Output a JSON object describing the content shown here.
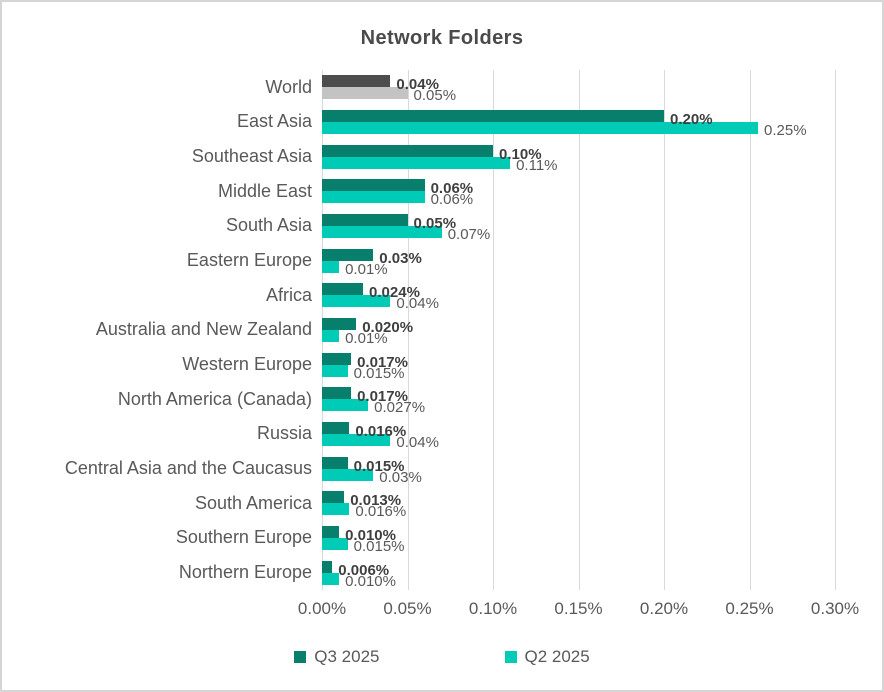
{
  "chart_data": {
    "type": "bar",
    "orientation": "horizontal",
    "title": "Network Folders",
    "xlabel": "",
    "ylabel": "",
    "xlim_percent": [
      0,
      0.3
    ],
    "x_ticks": [
      "0.00%",
      "0.05%",
      "0.10%",
      "0.15%",
      "0.20%",
      "0.25%",
      "0.30%"
    ],
    "grid": "vertical",
    "legend_position": "bottom",
    "series": [
      {
        "name": "Q3 2025",
        "color": "#087e6c"
      },
      {
        "name": "Q2 2025",
        "color": "#00cbb7"
      }
    ],
    "world_colors": {
      "q3": "#4d4d4d",
      "q2": "#c3c3c3"
    },
    "rows": [
      {
        "category": "World",
        "q3_value": 0.04,
        "q3_label": "0.04%",
        "q2_value": 0.05,
        "q2_label": "0.05%",
        "q3_color": "#4d4d4d",
        "q2_color": "#c3c3c3"
      },
      {
        "category": "East Asia",
        "q3_value": 0.2,
        "q3_label": "0.20%",
        "q2_value": 0.255,
        "q2_label": "0.25%"
      },
      {
        "category": "Southeast Asia",
        "q3_value": 0.1,
        "q3_label": "0.10%",
        "q2_value": 0.11,
        "q2_label": "0.11%"
      },
      {
        "category": "Middle East",
        "q3_value": 0.06,
        "q3_label": "0.06%",
        "q2_value": 0.06,
        "q2_label": "0.06%"
      },
      {
        "category": "South Asia",
        "q3_value": 0.05,
        "q3_label": "0.05%",
        "q2_value": 0.07,
        "q2_label": "0.07%"
      },
      {
        "category": "Eastern Europe",
        "q3_value": 0.03,
        "q3_label": "0.03%",
        "q2_value": 0.01,
        "q2_label": "0.01%"
      },
      {
        "category": "Africa",
        "q3_value": 0.024,
        "q3_label": "0.024%",
        "q2_value": 0.04,
        "q2_label": "0.04%"
      },
      {
        "category": "Australia and New Zealand",
        "q3_value": 0.02,
        "q3_label": "0.020%",
        "q2_value": 0.01,
        "q2_label": "0.01%"
      },
      {
        "category": "Western Europe",
        "q3_value": 0.017,
        "q3_label": "0.017%",
        "q2_value": 0.015,
        "q2_label": "0.015%"
      },
      {
        "category": "North America (Canada)",
        "q3_value": 0.017,
        "q3_label": "0.017%",
        "q2_value": 0.027,
        "q2_label": "0.027%"
      },
      {
        "category": "Russia",
        "q3_value": 0.016,
        "q3_label": "0.016%",
        "q2_value": 0.04,
        "q2_label": "0.04%"
      },
      {
        "category": "Central Asia and the Caucasus",
        "q3_value": 0.015,
        "q3_label": "0.015%",
        "q2_value": 0.03,
        "q2_label": "0.03%"
      },
      {
        "category": "South America",
        "q3_value": 0.013,
        "q3_label": "0.013%",
        "q2_value": 0.016,
        "q2_label": "0.016%"
      },
      {
        "category": "Southern Europe",
        "q3_value": 0.01,
        "q3_label": "0.010%",
        "q2_value": 0.015,
        "q2_label": "0.015%"
      },
      {
        "category": "Northern Europe",
        "q3_value": 0.006,
        "q3_label": "0.006%",
        "q2_value": 0.01,
        "q2_label": "0.010%"
      }
    ]
  },
  "legend": {
    "items": [
      {
        "label": "Q3 2025",
        "color": "#087e6c"
      },
      {
        "label": "Q2 2025",
        "color": "#00cbb7"
      }
    ]
  },
  "colors": {
    "grid": "#d9d9d9",
    "title_text": "#4a4a4a",
    "axis_text": "#595959",
    "q3_value_text": "#3f3f3f",
    "q2_value_text": "#595959"
  }
}
